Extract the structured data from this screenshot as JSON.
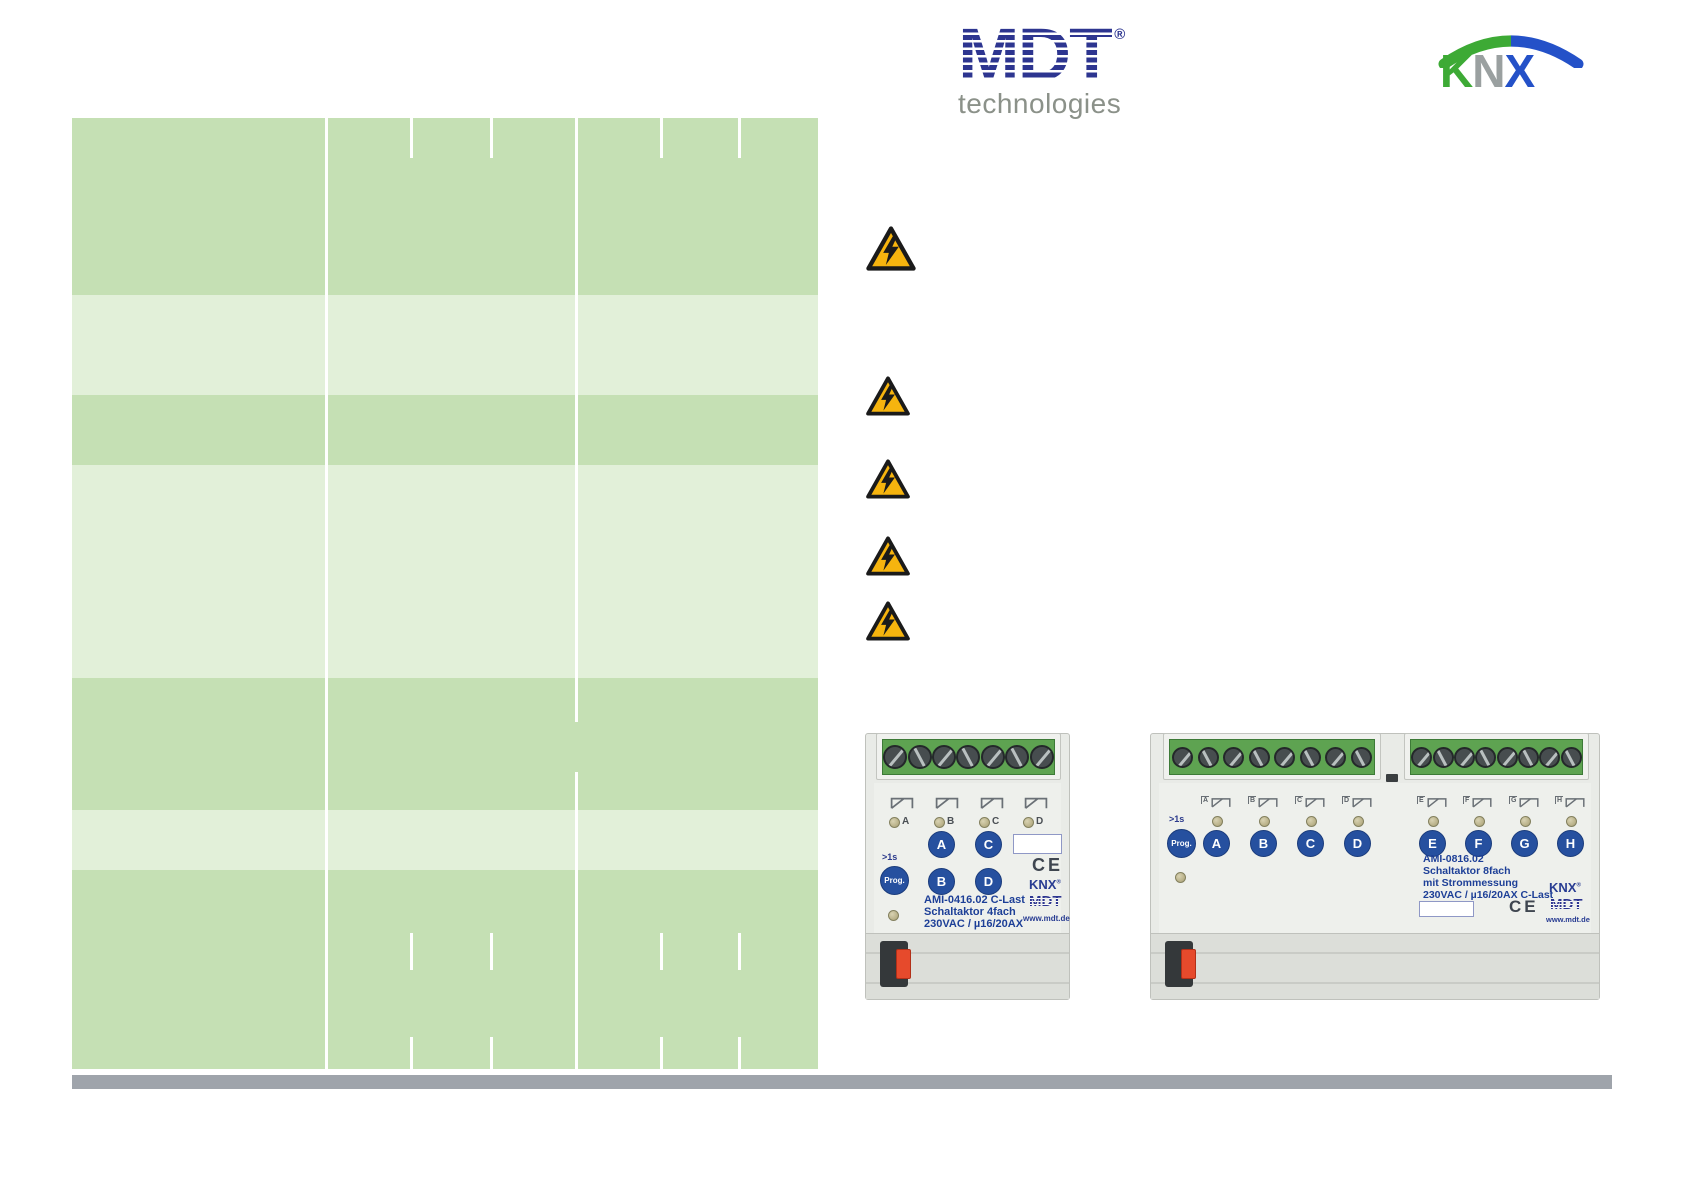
{
  "header": {
    "mdt": {
      "text": "MDT",
      "registered": "®",
      "subtitle": "technologies"
    },
    "knx": {
      "letters": [
        "K",
        "N",
        "X"
      ]
    }
  },
  "table": {
    "columns": 3,
    "rows": 7,
    "row_shades": [
      "dark",
      "light",
      "dark",
      "light",
      "dark",
      "light",
      "dark"
    ],
    "cells_empty": true
  },
  "warnings": {
    "icon": "high-voltage-warning-triangle",
    "count": 5
  },
  "devices": [
    {
      "article_lines": [
        "AMI-0416.02 C-Last",
        "Schaltaktor 4fach",
        "230VAC / µ16/20AX"
      ],
      "prog_hint": ">1s",
      "prog_label": "Prog.",
      "channels": [
        "A",
        "B",
        "C",
        "D"
      ],
      "ce_mark": "CE",
      "knx_badge": "KNX",
      "knx_registered": "®",
      "mdt_badge": "MDT",
      "website": "www.mdt.de"
    },
    {
      "article_lines": [
        "AMI-0816.02",
        "Schaltaktor 8fach",
        "mit Strommessung",
        "230VAC / µ16/20AX C-Last"
      ],
      "prog_hint": ">1s",
      "prog_label": "Prog.",
      "channels": [
        "A",
        "B",
        "C",
        "D",
        "E",
        "F",
        "G",
        "H"
      ],
      "ce_mark": "CE",
      "knx_badge": "KNX",
      "knx_registered": "®",
      "mdt_badge": "MDT",
      "website": "www.mdt.de"
    }
  ],
  "colors": {
    "row_dark": "#c5e0b4",
    "row_light": "#e2f0d9",
    "divider_gray": "#9fa4ab",
    "mdt_blue": "#2d3590",
    "knx_green": "#3daa35",
    "knx_gray": "#9aa0a0",
    "knx_blue": "#2451c8",
    "warning_yellow": "#f6b40e",
    "device_button_blue": "#26509f",
    "terminal_green": "#5ea351",
    "device_text_blue": "#1d3f97"
  }
}
